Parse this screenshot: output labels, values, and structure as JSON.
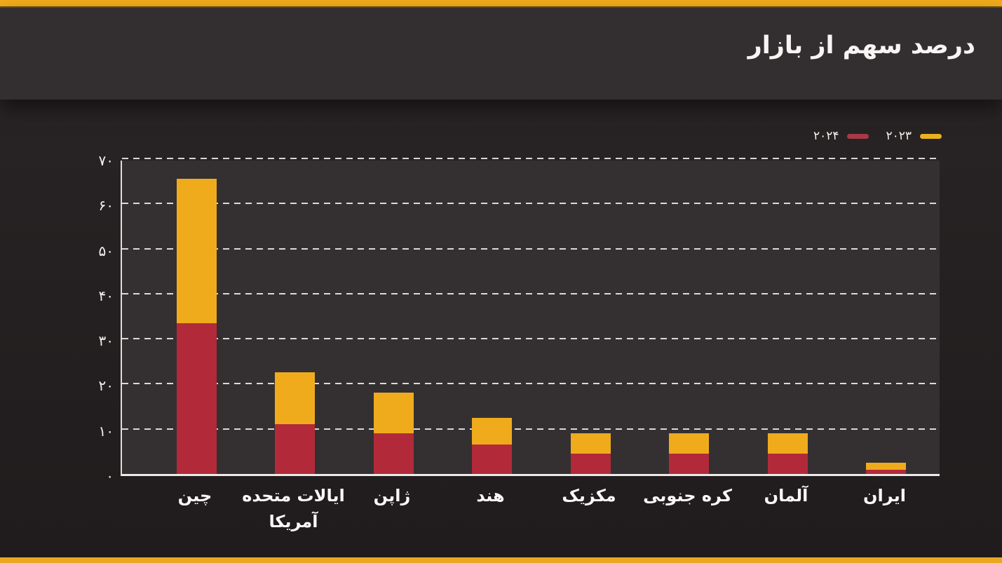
{
  "header": {
    "title": "درصد سهم از بازار"
  },
  "legend": [
    {
      "label": "۲۰۲۴",
      "color": "#a93a45"
    },
    {
      "label": "۲۰۲۳",
      "color": "#ecb01f"
    }
  ],
  "chart_data": {
    "type": "bar",
    "stacked": true,
    "title": "درصد سهم از بازار",
    "ylabel": "",
    "xlabel": "",
    "ylim": [
      0,
      70
    ],
    "grid": "dashed-horizontal",
    "legend_position": "top-right",
    "y_ticks": [
      0,
      10,
      20,
      30,
      40,
      50,
      60,
      70
    ],
    "y_tick_labels": [
      "۰",
      "۱۰",
      "۲۰",
      "۳۰",
      "۴۰",
      "۵۰",
      "۶۰",
      "۷۰"
    ],
    "categories": [
      "چین",
      "ایالات متحده آمریکا",
      "ژاپن",
      "هند",
      "مکزیک",
      "کره جنوبی",
      "آلمان",
      "ایران"
    ],
    "category_lines": [
      [
        "چین"
      ],
      [
        "ایالات متحده",
        "آمریکا"
      ],
      [
        "ژاپن"
      ],
      [
        "هند"
      ],
      [
        "مکزیک"
      ],
      [
        "کره جنوبی"
      ],
      [
        "آلمان"
      ],
      [
        "ایران"
      ]
    ],
    "category_slugs": [
      "china",
      "usa",
      "japan",
      "india",
      "mexico",
      "south-korea",
      "germany",
      "iran"
    ],
    "series": [
      {
        "name": "۲۰۲۴",
        "year": "2024",
        "color": "#b22a3a",
        "position": "bottom",
        "values": [
          33.5,
          11,
          9,
          6.5,
          4.5,
          4.5,
          4.5,
          1
        ]
      },
      {
        "name": "۲۰۲۳",
        "year": "2023",
        "color": "#f0ab1d",
        "position": "top",
        "values": [
          32,
          11.5,
          9,
          6,
          4.5,
          4.5,
          4.5,
          1.5
        ]
      }
    ],
    "totals": [
      65.5,
      22.5,
      18,
      12.5,
      9,
      9,
      9,
      2.5
    ]
  }
}
